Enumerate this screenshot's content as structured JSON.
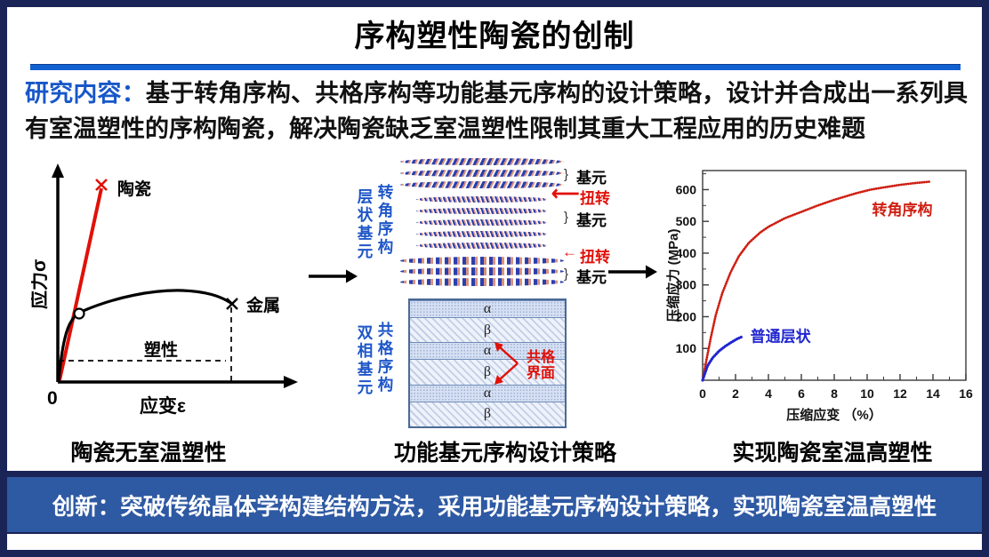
{
  "slide": {
    "title": "序构塑性陶瓷的创制",
    "research": {
      "label": "研究内容：",
      "body": "基于转角序构、共格序构等功能基元序构的设计策略，设计并合成出一系列具有室温塑性的序构陶瓷，解决陶瓷缺乏室温塑性限制其重大工程应用的历史难题"
    },
    "captions": {
      "left": "陶瓷无室温塑性",
      "middle": "功能基元序构设计策略",
      "right": "实现陶瓷室温高塑性"
    },
    "banner": {
      "label": "创新：",
      "body": "突破传统晶体学构建结构方法，采用功能基元序构设计策略，实现陶瓷室温高塑性"
    }
  },
  "middle": {
    "twist": {
      "side_label_outer": "层状基元",
      "side_label_inner": "转角序构",
      "right_labels": [
        {
          "text": "基元",
          "color": "black"
        },
        {
          "text": "扭转",
          "color": "red"
        },
        {
          "text": "基元",
          "color": "black"
        },
        {
          "text": "扭转",
          "color": "red"
        },
        {
          "text": "基元",
          "color": "black"
        }
      ]
    },
    "coherent": {
      "side_label_outer": "双相基元",
      "side_label_inner": "共格序构",
      "layers": [
        "α",
        "β",
        "α",
        "β",
        "α",
        "β"
      ],
      "interface_label": "共格\n界面"
    }
  },
  "colors": {
    "border_navy": "#1b2456",
    "banner_blue": "#2e59a3",
    "divider_blue": "#1060d0",
    "accent_blue_text": "#1757c8",
    "accent_red": "#e11008",
    "curve_red": "#cf1e12",
    "curve_blue": "#2026cf"
  },
  "chart_data": [
    {
      "type": "line",
      "schematic": true,
      "title": "",
      "xlabel": "应变ε",
      "ylabel": "应力σ",
      "origin_label": "0",
      "series": [
        {
          "name": "陶瓷",
          "color": "#e11008",
          "marker_end": "x",
          "shape": "steep linear rise, fracture, no plasticity"
        },
        {
          "name": "金属",
          "color": "#000000",
          "marker_yield": "o",
          "marker_end": "x",
          "shape": "elastic rise, yield, long plastic plateau to fracture"
        }
      ],
      "annotations": [
        "塑性"
      ],
      "grid": false
    },
    {
      "type": "scatter",
      "title": "",
      "xlabel": "压缩应变 （%）",
      "ylabel": "压缩应力 (MPa)",
      "xlim": [
        0,
        16
      ],
      "ylim": [
        0,
        660
      ],
      "x_ticks": [
        0,
        2,
        4,
        6,
        8,
        10,
        12,
        14,
        16
      ],
      "y_ticks": [
        100,
        200,
        300,
        400,
        500,
        600
      ],
      "grid": false,
      "frame": "box",
      "legend_position": "inline-annotations",
      "series": [
        {
          "name": "转角序构",
          "color": "#cf1e12",
          "label_at": [
            10.3,
            520
          ],
          "points": [
            [
              0,
              0
            ],
            [
              0.2,
              55
            ],
            [
              0.5,
              135
            ],
            [
              0.8,
              205
            ],
            [
              1.2,
              275
            ],
            [
              1.7,
              340
            ],
            [
              2.2,
              390
            ],
            [
              2.8,
              432
            ],
            [
              3.5,
              465
            ],
            [
              4,
              483
            ],
            [
              5,
              510
            ],
            [
              6,
              530
            ],
            [
              7,
              550
            ],
            [
              8,
              568
            ],
            [
              9.3,
              588
            ],
            [
              10.2,
              600
            ],
            [
              11,
              607
            ],
            [
              12,
              615
            ],
            [
              13,
              621
            ],
            [
              13.8,
              625
            ]
          ]
        },
        {
          "name": "普通层状",
          "color": "#2026cf",
          "label_at": [
            2.9,
            122
          ],
          "points": [
            [
              0,
              0
            ],
            [
              0.3,
              45
            ],
            [
              0.6,
              70
            ],
            [
              1,
              92
            ],
            [
              1.4,
              108
            ],
            [
              1.8,
              121
            ],
            [
              2.1,
              130
            ],
            [
              2.35,
              136
            ]
          ]
        }
      ]
    }
  ]
}
